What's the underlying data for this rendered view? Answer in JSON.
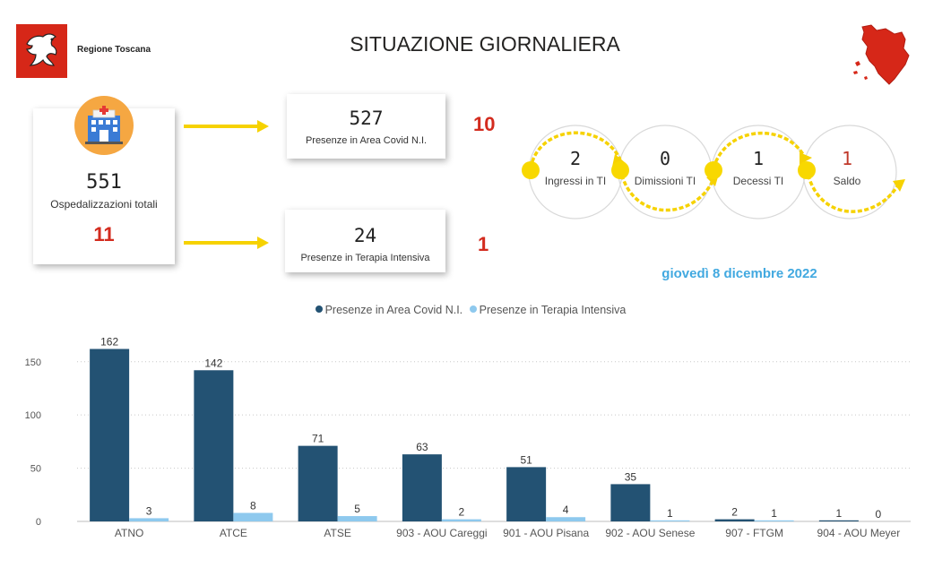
{
  "header": {
    "brand_name": "Regione Toscana",
    "title": "SITUAZIONE GIORNALIERA"
  },
  "summary": {
    "total": {
      "value": "551",
      "label": "Ospedalizzazioni totali",
      "delta": "11"
    },
    "covid_area": {
      "value": "527",
      "label": "Presenze in Area Covid N.I.",
      "delta": "10"
    },
    "intensive": {
      "value": "24",
      "label": "Presenze in Terapia Intensiva",
      "delta": "1"
    }
  },
  "flow": [
    {
      "value": "2",
      "label": "Ingressi in TI"
    },
    {
      "value": "0",
      "label": "Dimissioni TI"
    },
    {
      "value": "1",
      "label": "Decessi TI"
    },
    {
      "value": "1",
      "label": "Saldo"
    }
  ],
  "date": "giovedì 8 dicembre 2022",
  "colors": {
    "covid": "#235273",
    "intensive": "#8ec9ee",
    "accent_red": "#d32b1e",
    "arrow_yellow": "#f6d200",
    "date_blue": "#42a9e0",
    "logo_red": "#d62718"
  },
  "icons": [
    "region-logo-icon",
    "tuscany-map-icon",
    "hospital-icon",
    "arrow-right-icon"
  ],
  "chart_data": {
    "type": "bar",
    "categories": [
      "ATNO",
      "ATCE",
      "ATSE",
      "903 - AOU Careggi",
      "901 - AOU Pisana",
      "902 - AOU Senese",
      "907 - FTGM",
      "904 - AOU Meyer"
    ],
    "series": [
      {
        "name": "Presenze in Area Covid N.I.",
        "values": [
          162,
          142,
          71,
          63,
          51,
          35,
          2,
          1
        ]
      },
      {
        "name": "Presenze in Terapia Intensiva",
        "values": [
          3,
          8,
          5,
          2,
          4,
          1,
          1,
          0
        ]
      }
    ],
    "yticks": [
      0,
      50,
      100,
      150
    ],
    "ylim": [
      0,
      170
    ],
    "grid": true,
    "legend_position": "top-center",
    "title": "",
    "xlabel": "",
    "ylabel": ""
  }
}
